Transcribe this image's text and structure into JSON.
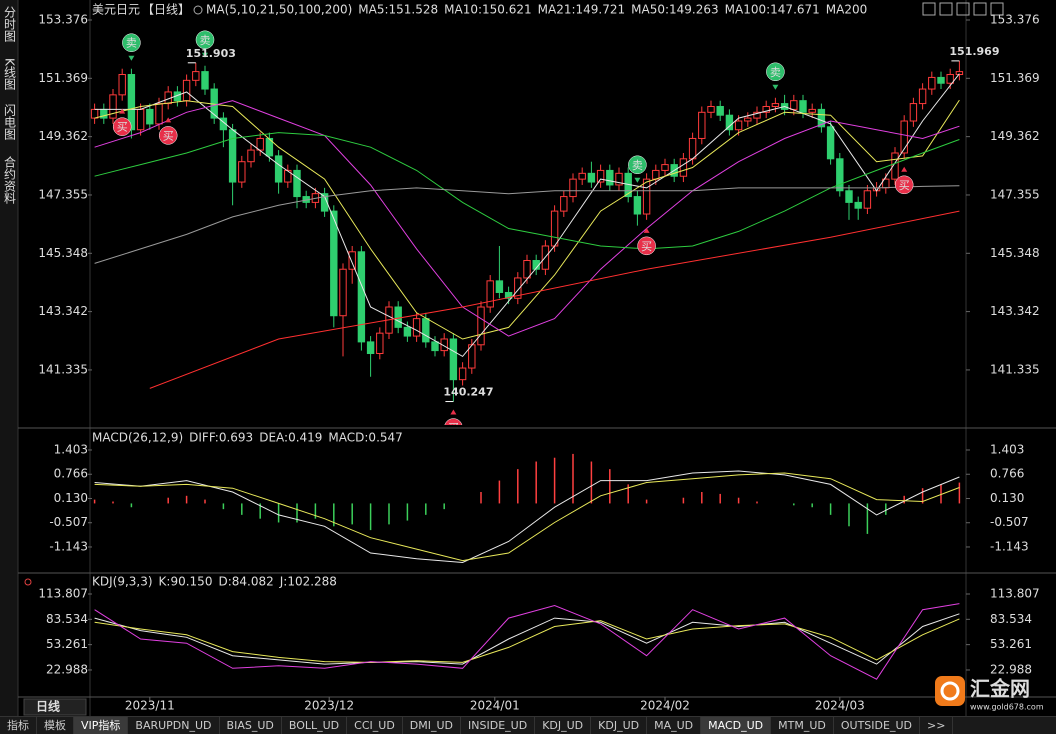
{
  "ui": {
    "sidebar": [
      "分时图",
      "K线图",
      "闪电图",
      "合约资料"
    ],
    "period": "日线",
    "logo": "汇金网",
    "logo_url": "www.gold678.com",
    "tabs": [
      "指标",
      "模板",
      "VIP指标",
      "BARUPDN_UD",
      "BIAS_UD",
      "BOLL_UD",
      "CCI_UD",
      "DMI_UD",
      "INSIDE_UD",
      "KDJ_UD",
      "KDJ_UD",
      "MA_UD",
      "MACD_UD",
      "MTM_UD",
      "OUTSIDE_UD",
      ">>"
    ]
  },
  "chart_data": [
    {
      "type": "candlestick",
      "title": "美元日元",
      "subtitle": "【日线】",
      "indicator": "MA(5,10,21,50,100,200)",
      "xlim": [
        -0.5,
        94.5
      ],
      "ylim": [
        139.44,
        153.72
      ],
      "yticks": [
        153.376,
        151.369,
        149.362,
        147.355,
        145.348,
        143.342,
        141.335
      ],
      "up_color": "#ff3b3b",
      "down_color": "#2fcf6f",
      "candles": {
        "open": [
          150.0,
          150.3,
          150.0,
          150.8,
          151.5,
          149.6,
          150.3,
          149.8,
          150.5,
          150.9,
          150.6,
          151.3,
          151.6,
          151.0,
          150.0,
          149.6,
          147.8,
          148.5,
          148.9,
          149.3,
          148.7,
          147.8,
          148.2,
          147.3,
          147.1,
          147.4,
          146.8,
          143.2,
          144.8,
          145.4,
          142.3,
          141.9,
          142.6,
          143.5,
          142.8,
          142.5,
          143.1,
          142.3,
          142.0,
          142.4,
          141.0,
          141.4,
          142.2,
          143.5,
          144.4,
          144.0,
          143.8,
          144.5,
          145.1,
          144.8,
          145.6,
          146.8,
          147.3,
          147.9,
          148.1,
          147.8,
          148.2,
          147.7,
          148.1,
          147.3,
          146.7,
          147.9,
          148.2,
          148.4,
          148.0,
          148.6,
          149.3,
          150.2,
          150.4,
          150.1,
          149.6,
          149.9,
          150.0,
          150.2,
          150.4,
          150.5,
          150.3,
          150.6,
          150.2,
          150.3,
          149.7,
          148.6,
          147.5,
          147.1,
          146.9,
          147.5,
          147.6,
          147.9,
          148.8,
          149.9,
          150.5,
          151.0,
          151.4,
          151.2,
          151.5
        ],
        "high": [
          150.5,
          150.5,
          151.0,
          151.7,
          151.7,
          150.5,
          150.5,
          150.7,
          151.1,
          151.1,
          151.5,
          151.903,
          151.8,
          151.2,
          150.2,
          149.8,
          148.7,
          149.1,
          149.5,
          149.5,
          148.9,
          148.4,
          148.4,
          147.5,
          147.6,
          147.6,
          147.0,
          145.0,
          145.6,
          145.6,
          142.5,
          142.8,
          143.7,
          143.7,
          143.0,
          143.3,
          143.3,
          142.5,
          142.6,
          142.6,
          141.6,
          142.4,
          143.7,
          144.6,
          145.6,
          144.2,
          144.7,
          145.3,
          145.3,
          145.8,
          147.0,
          147.5,
          148.1,
          148.3,
          148.5,
          148.4,
          148.4,
          148.3,
          148.3,
          147.5,
          148.1,
          148.4,
          148.6,
          148.6,
          148.8,
          149.5,
          150.4,
          150.6,
          150.6,
          150.3,
          150.1,
          150.2,
          150.4,
          150.6,
          150.7,
          150.8,
          150.8,
          150.8,
          150.5,
          150.5,
          149.9,
          148.8,
          147.7,
          147.3,
          147.7,
          147.8,
          148.1,
          149.0,
          150.1,
          150.7,
          151.2,
          151.6,
          151.6,
          151.7,
          151.969
        ],
        "low": [
          149.8,
          149.8,
          149.8,
          150.6,
          149.3,
          149.4,
          149.6,
          149.6,
          150.3,
          150.4,
          150.4,
          151.1,
          150.8,
          149.8,
          149.0,
          147.0,
          147.6,
          148.3,
          148.7,
          148.5,
          147.4,
          147.6,
          146.9,
          146.9,
          146.9,
          146.6,
          142.8,
          141.8,
          144.3,
          142.0,
          141.1,
          141.7,
          142.4,
          142.6,
          142.3,
          142.3,
          142.1,
          141.8,
          141.8,
          140.247,
          140.8,
          141.2,
          142.0,
          143.3,
          143.8,
          143.6,
          143.6,
          144.3,
          144.6,
          144.6,
          145.4,
          146.6,
          147.1,
          147.7,
          147.6,
          147.6,
          147.5,
          147.5,
          147.1,
          146.3,
          146.5,
          147.7,
          148.0,
          147.8,
          147.8,
          148.4,
          149.1,
          150.0,
          149.9,
          149.4,
          149.4,
          149.7,
          149.8,
          150.0,
          150.2,
          150.1,
          150.1,
          150.0,
          150.0,
          149.5,
          148.4,
          147.3,
          146.5,
          146.5,
          146.7,
          147.3,
          147.4,
          147.7,
          148.6,
          149.7,
          150.3,
          150.8,
          151.0,
          151.0,
          151.3
        ],
        "close": [
          150.3,
          150.0,
          150.8,
          151.5,
          149.6,
          150.3,
          149.8,
          150.5,
          150.9,
          150.6,
          151.3,
          151.6,
          151.0,
          150.0,
          149.6,
          147.8,
          148.5,
          148.9,
          149.3,
          148.7,
          147.8,
          148.2,
          147.3,
          147.1,
          147.4,
          146.8,
          143.2,
          144.8,
          145.4,
          142.3,
          141.9,
          142.6,
          143.5,
          142.8,
          142.5,
          143.1,
          142.3,
          142.0,
          142.4,
          141.0,
          141.4,
          142.2,
          143.5,
          144.4,
          144.0,
          143.8,
          144.5,
          145.1,
          144.8,
          145.6,
          146.8,
          147.3,
          147.9,
          148.1,
          147.8,
          148.2,
          147.7,
          148.1,
          147.3,
          146.7,
          147.9,
          148.2,
          148.4,
          148.0,
          148.6,
          149.3,
          150.2,
          150.4,
          150.1,
          149.6,
          149.9,
          150.0,
          150.2,
          150.4,
          150.5,
          150.3,
          150.6,
          150.2,
          150.3,
          149.7,
          148.6,
          147.5,
          147.1,
          146.9,
          147.5,
          147.6,
          147.9,
          148.8,
          149.9,
          150.5,
          151.0,
          151.4,
          151.2,
          151.5,
          151.6
        ]
      },
      "series": [
        {
          "legend": "MA5:151.528",
          "color": "#e8e8e8",
          "x": [
            0,
            5,
            10,
            15,
            20,
            25,
            30,
            35,
            40,
            45,
            50,
            55,
            60,
            65,
            70,
            75,
            80,
            85,
            90,
            94
          ],
          "values": [
            150.3,
            150.3,
            150.9,
            149.6,
            148.4,
            147.3,
            143.5,
            142.7,
            141.8,
            143.7,
            145.6,
            147.9,
            147.6,
            148.6,
            150.0,
            150.4,
            149.8,
            147.5,
            149.9,
            151.528
          ]
        },
        {
          "legend": "MA10:150.621",
          "color": "#e8e85a",
          "x": [
            0,
            5,
            10,
            15,
            20,
            25,
            30,
            35,
            40,
            45,
            50,
            55,
            60,
            65,
            70,
            75,
            80,
            85,
            90,
            94
          ],
          "values": [
            150.0,
            150.4,
            150.6,
            150.4,
            149.0,
            147.9,
            145.5,
            143.3,
            142.4,
            142.8,
            144.6,
            146.8,
            147.8,
            148.3,
            149.5,
            150.2,
            150.1,
            148.5,
            148.7,
            150.621
          ]
        },
        {
          "legend": "MA21:149.721",
          "color": "#e040e0",
          "x": [
            0,
            5,
            10,
            15,
            20,
            25,
            30,
            35,
            40,
            45,
            50,
            55,
            60,
            65,
            70,
            75,
            80,
            85,
            90,
            94
          ],
          "values": [
            149.0,
            149.5,
            150.2,
            150.6,
            150.0,
            149.4,
            147.7,
            145.5,
            143.5,
            142.5,
            143.1,
            144.8,
            146.2,
            147.5,
            148.5,
            149.3,
            149.9,
            149.6,
            149.3,
            149.721
          ]
        },
        {
          "legend": "MA50:149.263",
          "color": "#2ecc40",
          "x": [
            0,
            5,
            10,
            15,
            20,
            25,
            30,
            35,
            40,
            45,
            50,
            55,
            60,
            65,
            70,
            75,
            80,
            85,
            90,
            94
          ],
          "values": [
            148.0,
            148.4,
            148.8,
            149.3,
            149.5,
            149.4,
            149.0,
            148.2,
            147.1,
            146.2,
            145.9,
            145.6,
            145.5,
            145.6,
            146.1,
            146.8,
            147.6,
            148.2,
            148.8,
            149.263
          ]
        },
        {
          "legend": "MA100:147.671",
          "color": "#9a9a9a",
          "x": [
            0,
            5,
            10,
            15,
            20,
            25,
            30,
            35,
            40,
            45,
            50,
            55,
            60,
            65,
            70,
            75,
            80,
            85,
            90,
            94
          ],
          "values": [
            145.0,
            145.5,
            146.0,
            146.6,
            147.0,
            147.3,
            147.5,
            147.6,
            147.5,
            147.4,
            147.5,
            147.5,
            147.5,
            147.5,
            147.6,
            147.6,
            147.6,
            147.6,
            147.65,
            147.671
          ]
        },
        {
          "legend": "MA200",
          "color": "#ff3030",
          "x": [
            6,
            20,
            40,
            60,
            80,
            94
          ],
          "values": [
            140.7,
            142.4,
            143.5,
            144.8,
            145.9,
            146.8
          ]
        }
      ],
      "buy_signals": [
        {
          "x": 3,
          "label": "买"
        },
        {
          "x": 8,
          "label": "买"
        },
        {
          "x": 39,
          "label": "买"
        },
        {
          "x": 60,
          "label": "买"
        },
        {
          "x": 88,
          "label": "买"
        }
      ],
      "sell_signals": [
        {
          "x": 4,
          "label": "卖"
        },
        {
          "x": 12,
          "label": "卖"
        },
        {
          "x": 59,
          "label": "卖"
        },
        {
          "x": 74,
          "label": "卖"
        }
      ],
      "annotations": [
        {
          "x": 11,
          "y": 151.903,
          "text": "151.903",
          "color": "#ff5a5a"
        },
        {
          "x": 39,
          "y": 140.247,
          "text": "140.247",
          "color": "#3cd070"
        },
        {
          "x": 94,
          "y": 151.969,
          "text": "151.969",
          "color": "#ff5a5a"
        }
      ]
    },
    {
      "type": "macd",
      "indicator": "MACD(26,12,9)",
      "xlim": [
        -0.5,
        94.5
      ],
      "ylim": [
        -1.8,
        1.875
      ],
      "yticks": [
        1.403,
        0.766,
        {
          "value": 0.13,
          "label": "0.130"
        },
        -0.507,
        -1.143
      ],
      "series": [
        {
          "legend": "DIFF:0.693",
          "color": "#e8e8e8",
          "x": [
            0,
            5,
            10,
            15,
            20,
            25,
            30,
            35,
            40,
            45,
            50,
            55,
            60,
            65,
            70,
            75,
            80,
            85,
            90,
            94
          ],
          "values": [
            0.55,
            0.45,
            0.6,
            0.3,
            -0.3,
            -0.6,
            -1.3,
            -1.45,
            -1.55,
            -1.0,
            -0.1,
            0.6,
            0.6,
            0.8,
            0.85,
            0.75,
            0.5,
            -0.3,
            0.3,
            0.693
          ]
        },
        {
          "legend": "DEA:0.419",
          "color": "#e8e85a",
          "x": [
            0,
            5,
            10,
            15,
            20,
            25,
            30,
            35,
            40,
            45,
            50,
            55,
            60,
            65,
            70,
            75,
            80,
            85,
            90,
            94
          ],
          "values": [
            0.5,
            0.45,
            0.5,
            0.4,
            0.0,
            -0.4,
            -0.9,
            -1.2,
            -1.5,
            -1.3,
            -0.5,
            0.2,
            0.55,
            0.65,
            0.75,
            0.8,
            0.65,
            0.1,
            0.05,
            0.419
          ]
        }
      ],
      "histogram": {
        "legend": "MACD:0.547",
        "color": "#e040e0",
        "up_color": "#ff4040",
        "down_color": "#3ccf5a",
        "x": [
          0,
          2,
          4,
          6,
          8,
          10,
          12,
          14,
          16,
          18,
          20,
          22,
          24,
          26,
          28,
          30,
          32,
          34,
          36,
          38,
          40,
          42,
          44,
          46,
          48,
          50,
          52,
          54,
          56,
          58,
          60,
          62,
          64,
          66,
          68,
          70,
          72,
          74,
          76,
          78,
          80,
          82,
          84,
          86,
          88,
          90,
          92,
          94
        ],
        "values": [
          0.1,
          0.05,
          -0.1,
          0.0,
          0.15,
          0.2,
          0.1,
          -0.15,
          -0.3,
          -0.4,
          -0.5,
          -0.5,
          -0.4,
          -0.6,
          -0.55,
          -0.7,
          -0.55,
          -0.45,
          -0.3,
          -0.15,
          0.0,
          0.3,
          0.6,
          0.9,
          1.1,
          1.2,
          1.3,
          1.1,
          0.9,
          0.5,
          0.1,
          0.0,
          0.15,
          0.3,
          0.25,
          0.15,
          0.05,
          0.0,
          -0.05,
          -0.1,
          -0.3,
          -0.6,
          -0.8,
          -0.3,
          0.2,
          0.4,
          0.5,
          0.547
        ]
      }
    },
    {
      "type": "kdj",
      "indicator": "KDJ(9,3,3)",
      "xlim": [
        -0.5,
        94.5
      ],
      "ylim": [
        -12.9,
        136.5
      ],
      "yticks": [
        113.807,
        83.534,
        53.261,
        22.988
      ],
      "xticks": [
        {
          "value": 6,
          "label": "2023/11"
        },
        {
          "value": 25.5,
          "label": "2023/12"
        },
        {
          "value": 43.5,
          "label": "2024/01"
        },
        {
          "value": 62,
          "label": "2024/02"
        },
        {
          "value": 81,
          "label": "2024/03"
        }
      ],
      "series": [
        {
          "legend": "K:90.150",
          "color": "#e8e8e8",
          "x": [
            0,
            5,
            10,
            15,
            20,
            25,
            30,
            35,
            40,
            45,
            50,
            55,
            60,
            65,
            70,
            75,
            80,
            85,
            90,
            94
          ],
          "values": [
            85,
            70,
            62,
            40,
            35,
            30,
            32,
            33,
            30,
            60,
            85,
            80,
            55,
            80,
            75,
            80,
            55,
            30,
            75,
            90.15
          ]
        },
        {
          "legend": "D:84.082",
          "color": "#e8e85a",
          "x": [
            0,
            5,
            10,
            15,
            20,
            25,
            30,
            35,
            40,
            45,
            50,
            55,
            60,
            65,
            70,
            75,
            80,
            85,
            90,
            94
          ],
          "values": [
            80,
            72,
            65,
            45,
            38,
            33,
            32,
            34,
            32,
            50,
            75,
            82,
            60,
            72,
            76,
            78,
            62,
            35,
            65,
            84.082
          ]
        },
        {
          "legend": "J:102.288",
          "color": "#e040e0",
          "x": [
            0,
            5,
            10,
            15,
            20,
            25,
            30,
            35,
            40,
            45,
            50,
            55,
            60,
            65,
            70,
            75,
            80,
            85,
            90,
            94
          ],
          "values": [
            95,
            60,
            55,
            25,
            28,
            25,
            33,
            30,
            25,
            85,
            100,
            78,
            40,
            95,
            72,
            85,
            40,
            12,
            95,
            102.288
          ]
        }
      ]
    }
  ]
}
